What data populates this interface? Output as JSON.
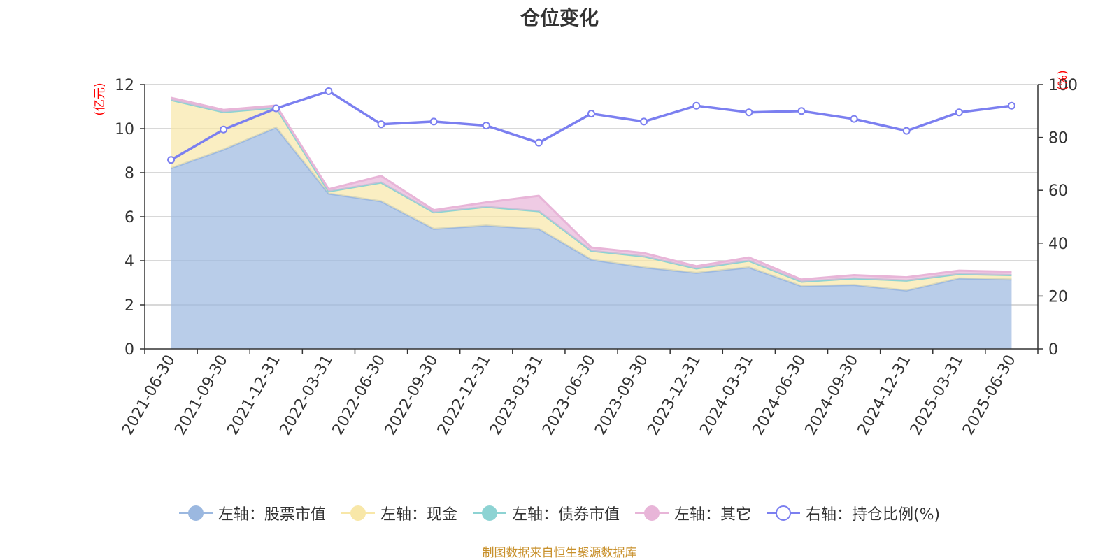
{
  "chart_data": {
    "type": "area",
    "title": "仓位变化",
    "left_axis_unit": "(亿元)",
    "right_axis_unit": "(%)",
    "categories": [
      "2021-06-30",
      "2021-09-30",
      "2021-12-31",
      "2022-03-31",
      "2022-06-30",
      "2022-09-30",
      "2022-12-31",
      "2023-03-31",
      "2023-06-30",
      "2023-09-30",
      "2023-12-31",
      "2024-03-31",
      "2024-06-30",
      "2024-09-30",
      "2024-12-31",
      "2025-03-31",
      "2025-06-30"
    ],
    "left_ylim": [
      0,
      12
    ],
    "left_yticks": [
      0,
      2,
      4,
      6,
      8,
      10,
      12
    ],
    "right_ylim": [
      0,
      100
    ],
    "right_yticks": [
      0,
      20,
      40,
      60,
      80,
      100
    ],
    "grid": true,
    "legend_position": "bottom",
    "series": [
      {
        "name": "左轴：股票市值",
        "axis": "left",
        "kind": "stacked-area",
        "color": "#9bb8e0",
        "values": [
          8.2,
          9.05,
          10.05,
          7.05,
          6.7,
          5.45,
          5.6,
          5.45,
          4.05,
          3.7,
          3.45,
          3.7,
          2.85,
          2.9,
          2.65,
          3.2,
          3.15
        ]
      },
      {
        "name": "左轴：现金",
        "axis": "left",
        "kind": "stacked-area",
        "color": "#f8e7a8",
        "values": [
          3.1,
          1.7,
          0.9,
          0.1,
          0.85,
          0.75,
          0.85,
          0.8,
          0.4,
          0.5,
          0.2,
          0.3,
          0.2,
          0.3,
          0.45,
          0.2,
          0.2
        ]
      },
      {
        "name": "左轴：债券市值",
        "axis": "left",
        "kind": "stacked-area",
        "color": "#8dd3d3",
        "values": [
          0,
          0,
          0,
          0,
          0,
          0,
          0,
          0,
          0,
          0,
          0,
          0,
          0,
          0,
          0,
          0,
          0
        ]
      },
      {
        "name": "左轴：其它",
        "axis": "left",
        "kind": "stacked-area",
        "color": "#e8b5d8",
        "values": [
          0.1,
          0.1,
          0.1,
          0.1,
          0.3,
          0.1,
          0.2,
          0.7,
          0.15,
          0.15,
          0.1,
          0.15,
          0.1,
          0.15,
          0.15,
          0.15,
          0.15
        ]
      },
      {
        "name": "右轴：持仓比例(%)",
        "axis": "right",
        "kind": "line",
        "color": "#7b7ff0",
        "values": [
          71.5,
          83,
          91,
          97.5,
          85,
          86,
          84.5,
          78,
          89,
          86,
          92,
          89.5,
          90,
          87,
          82.5,
          89.5,
          92
        ]
      }
    ]
  },
  "footer": {
    "source_note": "制图数据来自恒生聚源数据库"
  }
}
